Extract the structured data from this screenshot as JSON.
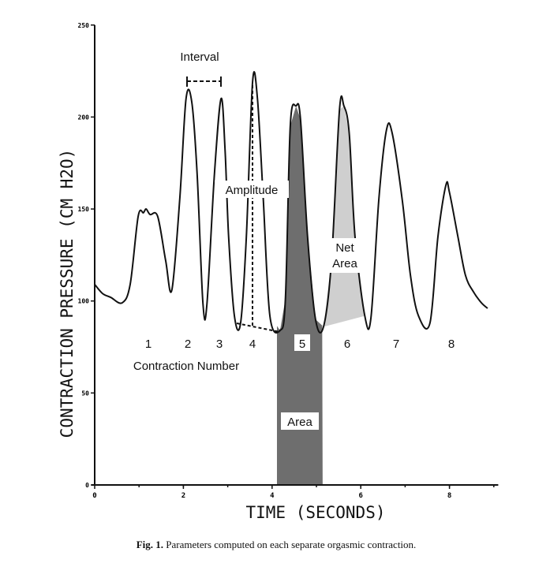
{
  "chart_data": {
    "type": "line",
    "xlabel": "TIME (SECONDS)",
    "ylabel": "CONTRACTION PRESSURE (CM H2O)",
    "xlim": [
      0,
      9
    ],
    "ylim": [
      0,
      250
    ],
    "xticks": [
      0,
      2,
      4,
      6,
      8
    ],
    "yticks": [
      0,
      50,
      100,
      150,
      200,
      250
    ],
    "grid": false,
    "series": [
      {
        "name": "pressure",
        "x": [
          0,
          0.18,
          0.36,
          0.62,
          0.8,
          0.98,
          1.1,
          1.16,
          1.25,
          1.42,
          1.6,
          1.74,
          1.92,
          2.06,
          2.19,
          2.31,
          2.44,
          2.53,
          2.7,
          2.85,
          2.94,
          3.02,
          3.15,
          3.29,
          3.42,
          3.56,
          3.67,
          3.8,
          3.95,
          4.18,
          4.3,
          4.41,
          4.54,
          4.64,
          4.8,
          4.98,
          5.16,
          5.34,
          5.52,
          5.62,
          5.74,
          5.87,
          6.09,
          6.23,
          6.41,
          6.58,
          6.71,
          6.94,
          7.12,
          7.3,
          7.56,
          7.74,
          7.92,
          8.0,
          8.19,
          8.36,
          8.54,
          8.72,
          8.86
        ],
        "y": [
          109,
          104,
          102,
          99,
          109,
          146,
          148,
          150,
          147,
          146,
          122,
          106,
          156,
          210,
          208,
          169,
          99,
          98,
          169,
          210,
          182,
          135,
          92,
          88,
          135,
          219,
          210,
          156,
          92,
          84,
          101,
          195,
          206,
          199,
          135,
          90,
          86,
          122,
          204,
          206,
          191,
          135,
          92,
          91,
          156,
          193,
          191,
          154,
          114,
          92,
          88,
          135,
          163,
          159,
          135,
          114,
          105,
          99,
          96
        ]
      }
    ],
    "annotations": {
      "interval": "Interval",
      "amplitude": "Amplitude",
      "net_area": [
        "Net",
        "Area"
      ],
      "area": "Area",
      "contraction_number": "Contraction Number",
      "contraction_labels": [
        "1",
        "2",
        "3",
        "4",
        "5",
        "6",
        "7",
        "8"
      ],
      "area_shaded_range": [
        4.11,
        5.14
      ],
      "net_area_range": [
        5.16,
        6.1
      ]
    },
    "caption_bold": "Fig. 1.",
    "caption": " Parameters computed on each separate orgasmic contraction."
  }
}
